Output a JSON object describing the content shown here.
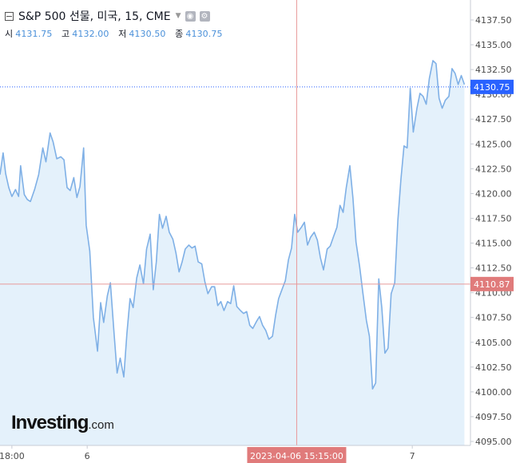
{
  "legend": {
    "title": "S&P 500 선물, 미국, 15, CME",
    "ohlc": [
      {
        "label": "시",
        "value": "4131.75"
      },
      {
        "label": "고",
        "value": "4132.00"
      },
      {
        "label": "저",
        "value": "4130.50"
      },
      {
        "label": "종",
        "value": "4130.75"
      }
    ]
  },
  "logo": {
    "main": "Investing",
    "suffix": ".com"
  },
  "icons": {
    "settings": "gear-icon",
    "visibility": "eye-icon",
    "collapse": "collapse-box-icon",
    "menu": "caret-down-icon"
  },
  "colors": {
    "line": "#7fb0e6",
    "area": "#e4f1fb",
    "crosshair": "#e89a9a",
    "price_tag": "#2962ff",
    "crosshair_tag": "#e07b7b"
  },
  "chart_data": {
    "type": "area",
    "ylim": [
      4094.5,
      4139.5
    ],
    "y_ticks": [
      "4137.50",
      "4135.00",
      "4132.50",
      "4130.00",
      "4127.50",
      "4125.00",
      "4122.50",
      "4120.00",
      "4117.50",
      "4115.00",
      "4112.50",
      "4110.00",
      "4107.50",
      "4105.00",
      "4102.50",
      "4100.00",
      "4097.50",
      "4095.00"
    ],
    "x_ticks": [
      {
        "label": "18:00",
        "x": 0.023
      },
      {
        "label": "6",
        "x": 0.169
      },
      {
        "label": "7",
        "x": 0.799
      }
    ],
    "current_price": "4130.75",
    "crosshair": {
      "price": "4110.87",
      "time": "2023-04-06 15:15:00",
      "x": 0.575
    },
    "grid": false,
    "series": [
      {
        "values": [
          [
            0.0,
            4121.9
          ],
          [
            0.006,
            4124.1
          ],
          [
            0.011,
            4122.0
          ],
          [
            0.017,
            4120.6
          ],
          [
            0.023,
            4119.7
          ],
          [
            0.03,
            4120.4
          ],
          [
            0.036,
            4119.7
          ],
          [
            0.04,
            4122.8
          ],
          [
            0.047,
            4119.9
          ],
          [
            0.053,
            4119.4
          ],
          [
            0.059,
            4119.2
          ],
          [
            0.067,
            4120.4
          ],
          [
            0.075,
            4121.9
          ],
          [
            0.083,
            4124.6
          ],
          [
            0.089,
            4123.2
          ],
          [
            0.097,
            4126.1
          ],
          [
            0.103,
            4125.2
          ],
          [
            0.11,
            4123.5
          ],
          [
            0.118,
            4123.7
          ],
          [
            0.124,
            4123.4
          ],
          [
            0.13,
            4120.6
          ],
          [
            0.136,
            4120.3
          ],
          [
            0.143,
            4121.6
          ],
          [
            0.149,
            4119.6
          ],
          [
            0.155,
            4120.7
          ],
          [
            0.162,
            4124.6
          ],
          [
            0.167,
            4116.8
          ],
          [
            0.174,
            4114.2
          ],
          [
            0.181,
            4107.5
          ],
          [
            0.189,
            4104.1
          ],
          [
            0.195,
            4109.0
          ],
          [
            0.201,
            4107.0
          ],
          [
            0.208,
            4109.7
          ],
          [
            0.214,
            4111.0
          ],
          [
            0.221,
            4105.9
          ],
          [
            0.227,
            4101.9
          ],
          [
            0.233,
            4103.4
          ],
          [
            0.24,
            4101.5
          ],
          [
            0.246,
            4105.9
          ],
          [
            0.252,
            4109.4
          ],
          [
            0.258,
            4108.5
          ],
          [
            0.265,
            4111.5
          ],
          [
            0.271,
            4112.8
          ],
          [
            0.278,
            4110.9
          ],
          [
            0.284,
            4114.4
          ],
          [
            0.291,
            4115.9
          ],
          [
            0.297,
            4110.3
          ],
          [
            0.303,
            4113.1
          ],
          [
            0.309,
            4117.9
          ],
          [
            0.315,
            4116.5
          ],
          [
            0.322,
            4117.7
          ],
          [
            0.328,
            4116.1
          ],
          [
            0.335,
            4115.4
          ],
          [
            0.341,
            4114.0
          ],
          [
            0.347,
            4112.1
          ],
          [
            0.353,
            4113.1
          ],
          [
            0.359,
            4114.4
          ],
          [
            0.366,
            4114.8
          ],
          [
            0.372,
            4114.5
          ],
          [
            0.378,
            4114.7
          ],
          [
            0.384,
            4113.1
          ],
          [
            0.391,
            4112.9
          ],
          [
            0.397,
            4111.1
          ],
          [
            0.403,
            4109.9
          ],
          [
            0.41,
            4110.6
          ],
          [
            0.416,
            4110.6
          ],
          [
            0.422,
            4108.7
          ],
          [
            0.428,
            4109.1
          ],
          [
            0.434,
            4108.2
          ],
          [
            0.441,
            4109.1
          ],
          [
            0.447,
            4108.9
          ],
          [
            0.453,
            4110.7
          ],
          [
            0.459,
            4108.6
          ],
          [
            0.466,
            4108.2
          ],
          [
            0.472,
            4107.9
          ],
          [
            0.478,
            4108.1
          ],
          [
            0.484,
            4106.7
          ],
          [
            0.49,
            4106.4
          ],
          [
            0.497,
            4107.1
          ],
          [
            0.503,
            4107.6
          ],
          [
            0.509,
            4106.7
          ],
          [
            0.515,
            4106.2
          ],
          [
            0.521,
            4105.3
          ],
          [
            0.528,
            4105.6
          ],
          [
            0.534,
            4107.7
          ],
          [
            0.54,
            4109.4
          ],
          [
            0.547,
            4110.4
          ],
          [
            0.553,
            4111.2
          ],
          [
            0.559,
            4113.3
          ],
          [
            0.565,
            4114.5
          ],
          [
            0.571,
            4117.9
          ],
          [
            0.577,
            4116.1
          ],
          [
            0.584,
            4116.6
          ],
          [
            0.59,
            4117.1
          ],
          [
            0.596,
            4114.8
          ],
          [
            0.602,
            4115.6
          ],
          [
            0.609,
            4116.1
          ],
          [
            0.615,
            4115.3
          ],
          [
            0.621,
            4113.5
          ],
          [
            0.627,
            4112.3
          ],
          [
            0.634,
            4114.4
          ],
          [
            0.64,
            4114.7
          ],
          [
            0.646,
            4115.6
          ],
          [
            0.653,
            4116.6
          ],
          [
            0.659,
            4118.8
          ],
          [
            0.665,
            4118.1
          ],
          [
            0.671,
            4120.6
          ],
          [
            0.678,
            4122.8
          ],
          [
            0.684,
            4119.5
          ],
          [
            0.69,
            4115.1
          ],
          [
            0.697,
            4112.6
          ],
          [
            0.703,
            4110.1
          ],
          [
            0.71,
            4107.2
          ],
          [
            0.716,
            4105.6
          ],
          [
            0.722,
            4100.3
          ],
          [
            0.728,
            4100.9
          ],
          [
            0.734,
            4111.4
          ],
          [
            0.74,
            4108.5
          ],
          [
            0.746,
            4103.9
          ],
          [
            0.752,
            4104.4
          ],
          [
            0.758,
            4109.9
          ],
          [
            0.765,
            4111.0
          ],
          [
            0.771,
            4117.3
          ],
          [
            0.777,
            4121.4
          ],
          [
            0.783,
            4124.8
          ],
          [
            0.789,
            4124.6
          ],
          [
            0.795,
            4130.6
          ],
          [
            0.801,
            4126.2
          ],
          [
            0.808,
            4128.6
          ],
          [
            0.814,
            4130.1
          ],
          [
            0.82,
            4129.8
          ],
          [
            0.826,
            4129.0
          ],
          [
            0.832,
            4131.6
          ],
          [
            0.839,
            4133.4
          ],
          [
            0.845,
            4133.1
          ],
          [
            0.851,
            4129.6
          ],
          [
            0.857,
            4128.6
          ],
          [
            0.863,
            4129.4
          ],
          [
            0.87,
            4129.8
          ],
          [
            0.876,
            4132.6
          ],
          [
            0.882,
            4132.1
          ],
          [
            0.888,
            4131.0
          ],
          [
            0.894,
            4131.9
          ],
          [
            0.9,
            4131.0
          ]
        ]
      }
    ]
  }
}
